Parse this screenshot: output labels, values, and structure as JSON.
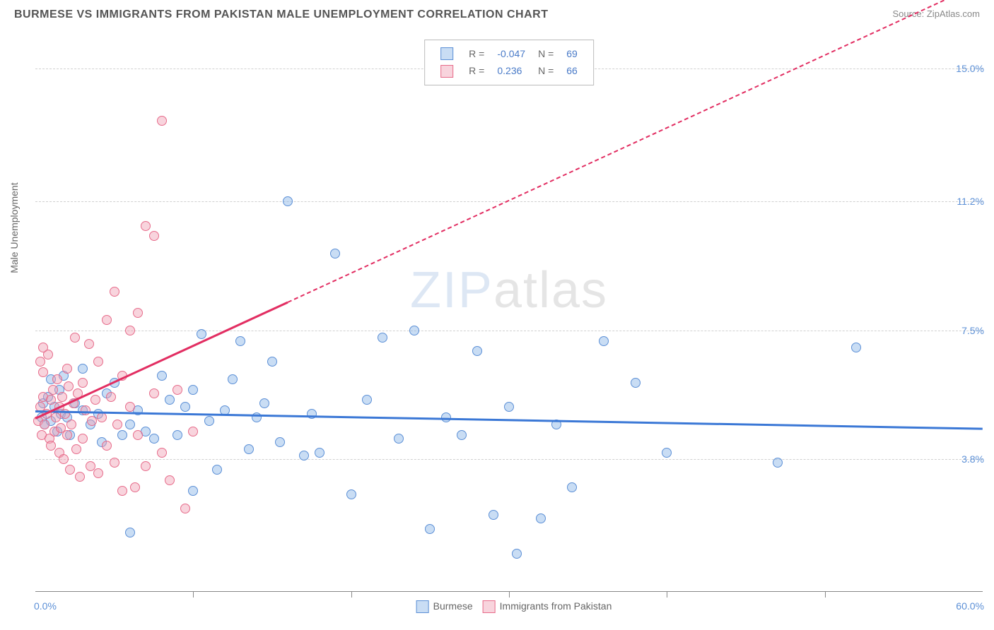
{
  "header": {
    "title": "BURMESE VS IMMIGRANTS FROM PAKISTAN MALE UNEMPLOYMENT CORRELATION CHART",
    "source_prefix": "Source: ",
    "source_name": "ZipAtlas.com"
  },
  "watermark": {
    "bold": "ZIP",
    "thin": "atlas"
  },
  "chart": {
    "type": "scatter",
    "ylabel": "Male Unemployment",
    "xlim": [
      0.0,
      60.0
    ],
    "ylim": [
      0.0,
      16.0
    ],
    "xmin_label": "0.0%",
    "xmax_label": "60.0%",
    "yticks": [
      {
        "v": 3.8,
        "label": "3.8%"
      },
      {
        "v": 7.5,
        "label": "7.5%"
      },
      {
        "v": 11.2,
        "label": "11.2%"
      },
      {
        "v": 15.0,
        "label": "15.0%"
      }
    ],
    "xticks": [
      10,
      20,
      30,
      40,
      50
    ],
    "grid_color": "#d0d0d0",
    "background_color": "#ffffff",
    "marker_size": 14,
    "series": [
      {
        "id": "burmese",
        "label": "Burmese",
        "fill": "rgba(135, 180, 230, 0.45)",
        "stroke": "#5b8fd6",
        "r_value": "-0.047",
        "n_value": "69",
        "trend": {
          "x0": 0,
          "y0": 5.2,
          "x1": 60,
          "y1": 4.7,
          "solid_to_x": 60,
          "color": "#3b78d6"
        },
        "points": [
          [
            0.4,
            5.0
          ],
          [
            0.5,
            5.4
          ],
          [
            0.6,
            4.8
          ],
          [
            0.8,
            5.6
          ],
          [
            1.0,
            6.1
          ],
          [
            1.0,
            4.9
          ],
          [
            1.2,
            5.3
          ],
          [
            1.4,
            4.6
          ],
          [
            1.5,
            5.8
          ],
          [
            1.6,
            5.1
          ],
          [
            1.8,
            6.2
          ],
          [
            2.0,
            5.0
          ],
          [
            2.2,
            4.5
          ],
          [
            2.5,
            5.4
          ],
          [
            3.0,
            6.4
          ],
          [
            3.0,
            5.2
          ],
          [
            3.5,
            4.8
          ],
          [
            4.0,
            5.1
          ],
          [
            4.2,
            4.3
          ],
          [
            4.5,
            5.7
          ],
          [
            5.0,
            6.0
          ],
          [
            5.5,
            4.5
          ],
          [
            6.0,
            4.8
          ],
          [
            6.5,
            5.2
          ],
          [
            7.0,
            4.6
          ],
          [
            7.5,
            4.4
          ],
          [
            8.0,
            6.2
          ],
          [
            8.5,
            5.5
          ],
          [
            9.0,
            4.5
          ],
          [
            9.5,
            5.3
          ],
          [
            10.0,
            5.8
          ],
          [
            10.5,
            7.4
          ],
          [
            11.0,
            4.9
          ],
          [
            11.5,
            3.5
          ],
          [
            12.0,
            5.2
          ],
          [
            12.5,
            6.1
          ],
          [
            13.0,
            7.2
          ],
          [
            13.5,
            4.1
          ],
          [
            14.0,
            5.0
          ],
          [
            14.5,
            5.4
          ],
          [
            15.0,
            6.6
          ],
          [
            15.5,
            4.3
          ],
          [
            16.0,
            11.2
          ],
          [
            17.0,
            3.9
          ],
          [
            17.5,
            5.1
          ],
          [
            18.0,
            4.0
          ],
          [
            19.0,
            9.7
          ],
          [
            20.0,
            2.8
          ],
          [
            21.0,
            5.5
          ],
          [
            22.0,
            7.3
          ],
          [
            23.0,
            4.4
          ],
          [
            24.0,
            7.5
          ],
          [
            25.0,
            1.8
          ],
          [
            26.0,
            5.0
          ],
          [
            27.0,
            4.5
          ],
          [
            28.0,
            6.9
          ],
          [
            29.0,
            2.2
          ],
          [
            30.0,
            5.3
          ],
          [
            30.5,
            1.1
          ],
          [
            32.0,
            2.1
          ],
          [
            33.0,
            4.8
          ],
          [
            34.0,
            3.0
          ],
          [
            36.0,
            7.2
          ],
          [
            38.0,
            6.0
          ],
          [
            40.0,
            4.0
          ],
          [
            47.0,
            3.7
          ],
          [
            52.0,
            7.0
          ],
          [
            6.0,
            1.7
          ],
          [
            10.0,
            2.9
          ]
        ]
      },
      {
        "id": "pakistan",
        "label": "Immigrants from Pakistan",
        "fill": "rgba(240, 160, 180, 0.45)",
        "stroke": "#e76b8a",
        "r_value": "0.236",
        "n_value": "66",
        "trend": {
          "x0": 0,
          "y0": 5.0,
          "x1": 60,
          "y1": 17.5,
          "solid_to_x": 16,
          "color": "#e22e62"
        },
        "points": [
          [
            0.2,
            4.9
          ],
          [
            0.3,
            5.3
          ],
          [
            0.4,
            4.5
          ],
          [
            0.5,
            5.6
          ],
          [
            0.5,
            6.3
          ],
          [
            0.6,
            4.8
          ],
          [
            0.7,
            5.1
          ],
          [
            0.8,
            6.8
          ],
          [
            0.9,
            4.4
          ],
          [
            1.0,
            5.5
          ],
          [
            1.0,
            4.2
          ],
          [
            1.1,
            5.8
          ],
          [
            1.2,
            4.6
          ],
          [
            1.3,
            5.0
          ],
          [
            1.4,
            6.1
          ],
          [
            1.5,
            4.0
          ],
          [
            1.5,
            5.3
          ],
          [
            1.6,
            4.7
          ],
          [
            1.7,
            5.6
          ],
          [
            1.8,
            3.8
          ],
          [
            1.9,
            5.1
          ],
          [
            2.0,
            6.4
          ],
          [
            2.0,
            4.5
          ],
          [
            2.1,
            5.9
          ],
          [
            2.2,
            3.5
          ],
          [
            2.3,
            4.8
          ],
          [
            2.4,
            5.4
          ],
          [
            2.5,
            7.3
          ],
          [
            2.6,
            4.1
          ],
          [
            2.7,
            5.7
          ],
          [
            2.8,
            3.3
          ],
          [
            3.0,
            6.0
          ],
          [
            3.0,
            4.4
          ],
          [
            3.2,
            5.2
          ],
          [
            3.4,
            7.1
          ],
          [
            3.5,
            3.6
          ],
          [
            3.6,
            4.9
          ],
          [
            3.8,
            5.5
          ],
          [
            4.0,
            6.6
          ],
          [
            4.0,
            3.4
          ],
          [
            4.2,
            5.0
          ],
          [
            4.5,
            7.8
          ],
          [
            4.5,
            4.2
          ],
          [
            4.8,
            5.6
          ],
          [
            5.0,
            8.6
          ],
          [
            5.0,
            3.7
          ],
          [
            5.2,
            4.8
          ],
          [
            5.5,
            6.2
          ],
          [
            5.5,
            2.9
          ],
          [
            6.0,
            5.3
          ],
          [
            6.0,
            7.5
          ],
          [
            6.3,
            3.0
          ],
          [
            6.5,
            4.5
          ],
          [
            6.5,
            8.0
          ],
          [
            7.0,
            10.5
          ],
          [
            7.0,
            3.6
          ],
          [
            7.5,
            5.7
          ],
          [
            7.5,
            10.2
          ],
          [
            8.0,
            4.0
          ],
          [
            8.0,
            13.5
          ],
          [
            8.5,
            3.2
          ],
          [
            9.0,
            5.8
          ],
          [
            9.5,
            2.4
          ],
          [
            10.0,
            4.6
          ],
          [
            0.3,
            6.6
          ],
          [
            0.5,
            7.0
          ]
        ]
      }
    ],
    "legend_top": {
      "r_label": "R =",
      "n_label": "N ="
    }
  }
}
